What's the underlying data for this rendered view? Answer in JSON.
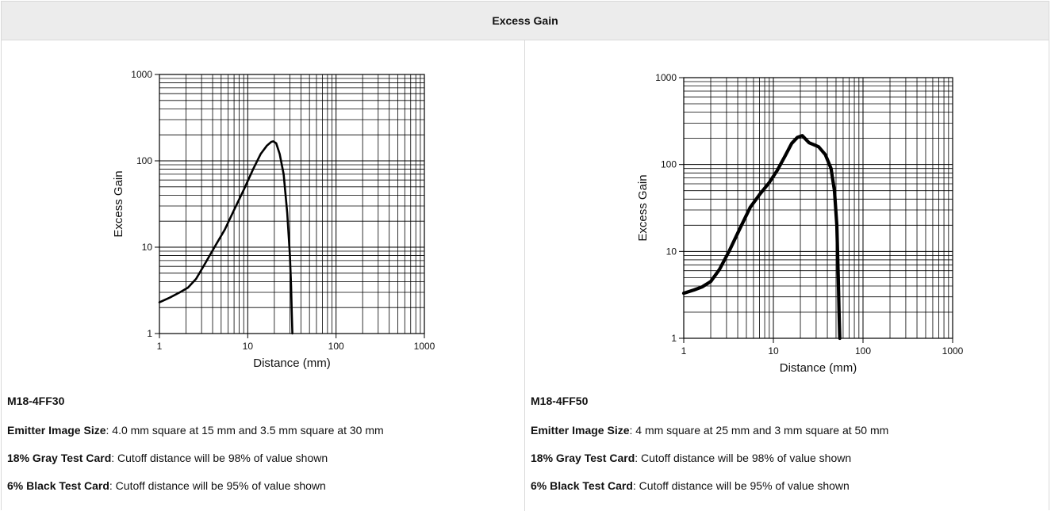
{
  "header": {
    "title": "Excess Gain"
  },
  "panels": [
    {
      "model": "M18-4FF30",
      "notes": [
        {
          "label": "Emitter Image Size",
          "text": ": 4.0 mm square at 15 mm and 3.5 mm square at 30 mm"
        },
        {
          "label": "18% Gray Test Card",
          "text": ": Cutoff distance will be 98% of value shown"
        },
        {
          "label": "6% Black Test Card",
          "text": ": Cutoff distance will be 95% of value shown"
        }
      ]
    },
    {
      "model": "M18-4FF50",
      "notes": [
        {
          "label": "Emitter Image Size",
          "text": ": 4 mm square at 25 mm and 3 mm square at 50 mm"
        },
        {
          "label": "18% Gray Test Card",
          "text": ": Cutoff distance will be 98% of value shown"
        },
        {
          "label": "6% Black Test Card",
          "text": ": Cutoff distance will be 95% of value shown"
        }
      ]
    }
  ],
  "chart_data": [
    {
      "type": "line",
      "xlabel": "Distance (mm)",
      "ylabel": "Excess Gain",
      "xscale": "log",
      "yscale": "log",
      "xlim": [
        1,
        1000
      ],
      "ylim": [
        1,
        1000
      ],
      "xticks": [
        "1",
        "10",
        "100",
        "1000"
      ],
      "yticks": [
        "1",
        "10",
        "100",
        "1000"
      ],
      "grid": true,
      "series": [
        {
          "x": [
            1,
            1.3,
            1.7,
            2.1,
            2.6,
            3.3,
            4.2,
            5.5,
            7,
            9,
            11.5,
            14,
            16.5,
            18.5,
            19.5,
            21,
            23,
            25.5,
            28,
            30,
            31,
            31.5,
            32
          ],
          "y": [
            2.3,
            2.6,
            3.0,
            3.4,
            4.3,
            6.5,
            10,
            16,
            27,
            46,
            80,
            120,
            150,
            166,
            168,
            160,
            120,
            70,
            25,
            8,
            3.5,
            1.8,
            1
          ]
        }
      ]
    },
    {
      "type": "line",
      "xlabel": "Distance (mm)",
      "ylabel": "Excess Gain",
      "xscale": "log",
      "yscale": "log",
      "xlim": [
        1,
        1000
      ],
      "ylim": [
        1,
        1000
      ],
      "xticks": [
        "1",
        "10",
        "100",
        "1000"
      ],
      "yticks": [
        "1",
        "10",
        "100",
        "1000"
      ],
      "grid": true,
      "series": [
        {
          "x": [
            1,
            1.3,
            1.6,
            2.0,
            2.5,
            3.2,
            4.2,
            5.5,
            7,
            9,
            11,
            13.5,
            16,
            18.5,
            21,
            23,
            25,
            28,
            32,
            38,
            44,
            48,
            51,
            53,
            54,
            55
          ],
          "y": [
            3.3,
            3.6,
            3.9,
            4.5,
            6.2,
            10,
            18,
            32,
            45,
            62,
            85,
            125,
            175,
            205,
            215,
            195,
            178,
            170,
            160,
            130,
            90,
            50,
            20,
            5,
            2,
            1
          ]
        }
      ]
    }
  ]
}
